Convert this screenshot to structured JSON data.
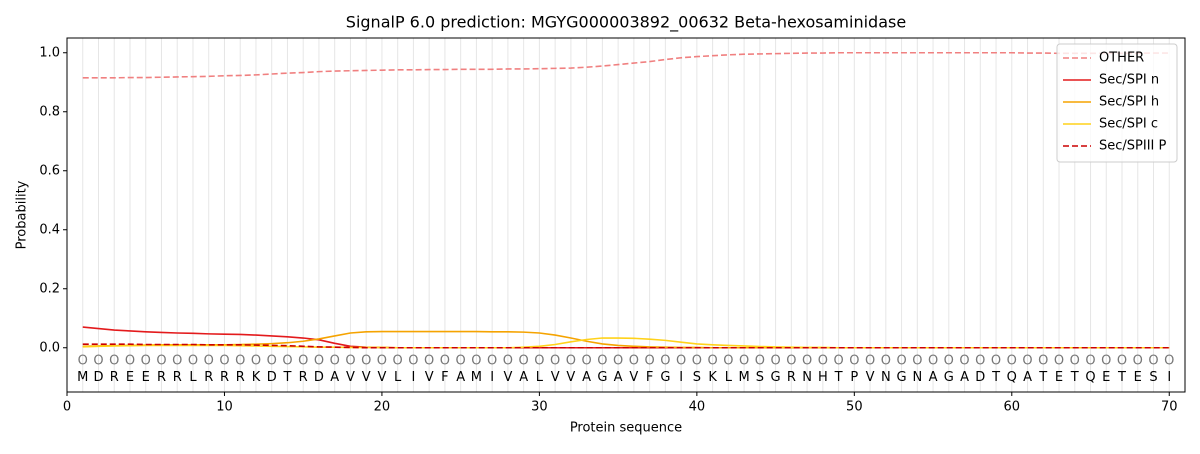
{
  "chart_data": {
    "type": "line",
    "title": "SignalP 6.0 prediction: MGYG000003892_00632 Beta-hexosaminidase",
    "xlabel": "Protein sequence",
    "ylabel": "Probability",
    "x": [
      1,
      2,
      3,
      4,
      5,
      6,
      7,
      8,
      9,
      10,
      11,
      12,
      13,
      14,
      15,
      16,
      17,
      18,
      19,
      20,
      21,
      22,
      23,
      24,
      25,
      26,
      27,
      28,
      29,
      30,
      31,
      32,
      33,
      34,
      35,
      36,
      37,
      38,
      39,
      40,
      41,
      42,
      43,
      44,
      45,
      46,
      47,
      48,
      49,
      50,
      51,
      52,
      53,
      54,
      55,
      56,
      57,
      58,
      59,
      60,
      61,
      62,
      63,
      64,
      65,
      66,
      67,
      68,
      69,
      70
    ],
    "sequence": [
      "M",
      "D",
      "R",
      "E",
      "E",
      "R",
      "R",
      "L",
      "R",
      "R",
      "R",
      "K",
      "D",
      "T",
      "R",
      "D",
      "A",
      "V",
      "V",
      "V",
      "L",
      "I",
      "V",
      "F",
      "A",
      "M",
      "I",
      "V",
      "A",
      "L",
      "V",
      "V",
      "A",
      "G",
      "A",
      "V",
      "F",
      "G",
      "I",
      "S",
      "K",
      "L",
      "M",
      "S",
      "G",
      "R",
      "N",
      "H",
      "T",
      "P",
      "V",
      "N",
      "G",
      "N",
      "A",
      "G",
      "A",
      "D",
      "T",
      "Q",
      "A",
      "T",
      "E",
      "T",
      "Q",
      "E",
      "T",
      "E",
      "S",
      "I"
    ],
    "state_labels": [
      "O",
      "O",
      "O",
      "O",
      "O",
      "O",
      "O",
      "O",
      "O",
      "O",
      "O",
      "O",
      "O",
      "O",
      "O",
      "O",
      "O",
      "O",
      "O",
      "O",
      "O",
      "O",
      "O",
      "O",
      "O",
      "O",
      "O",
      "O",
      "O",
      "O",
      "O",
      "O",
      "O",
      "O",
      "O",
      "O",
      "O",
      "O",
      "O",
      "O",
      "O",
      "O",
      "O",
      "O",
      "O",
      "O",
      "O",
      "O",
      "O",
      "O",
      "O",
      "O",
      "O",
      "O",
      "O",
      "O",
      "O",
      "O",
      "O",
      "O",
      "O",
      "O",
      "O",
      "O",
      "O",
      "O",
      "O",
      "O",
      "O",
      "O"
    ],
    "series": [
      {
        "name": "OTHER",
        "color": "#f08080",
        "dashed": true,
        "values": [
          0.915,
          0.915,
          0.915,
          0.916,
          0.916,
          0.917,
          0.918,
          0.919,
          0.92,
          0.922,
          0.923,
          0.925,
          0.928,
          0.931,
          0.933,
          0.936,
          0.938,
          0.939,
          0.94,
          0.941,
          0.942,
          0.942,
          0.943,
          0.943,
          0.944,
          0.944,
          0.944,
          0.945,
          0.945,
          0.946,
          0.947,
          0.948,
          0.951,
          0.955,
          0.96,
          0.965,
          0.97,
          0.977,
          0.983,
          0.987,
          0.99,
          0.993,
          0.995,
          0.996,
          0.997,
          0.998,
          0.999,
          0.999,
          1.0,
          1.0,
          1.0,
          1.0,
          1.0,
          1.0,
          1.0,
          1.0,
          1.0,
          1.0,
          1.0,
          1.0,
          0.999,
          0.999,
          0.998,
          0.998,
          0.998,
          0.998,
          0.998,
          0.998,
          0.999,
          0.999
        ]
      },
      {
        "name": "Sec/SPI n",
        "color": "#e31a1c",
        "dashed": false,
        "values": [
          0.07,
          0.065,
          0.06,
          0.057,
          0.054,
          0.052,
          0.05,
          0.049,
          0.047,
          0.046,
          0.045,
          0.043,
          0.04,
          0.037,
          0.033,
          0.027,
          0.015,
          0.005,
          0.002,
          0.001,
          0,
          0,
          0,
          0,
          0,
          0,
          0,
          0,
          0,
          0,
          0,
          0,
          0,
          0,
          0,
          0,
          0,
          0,
          0,
          0,
          0,
          0,
          0,
          0,
          0,
          0,
          0,
          0,
          0,
          0,
          0,
          0,
          0,
          0,
          0,
          0,
          0,
          0,
          0,
          0,
          0,
          0,
          0,
          0,
          0,
          0,
          0,
          0,
          0,
          0
        ]
      },
      {
        "name": "Sec/SPI h",
        "color": "#f5a300",
        "dashed": false,
        "values": [
          0.005,
          0.006,
          0.007,
          0.008,
          0.009,
          0.01,
          0.01,
          0.01,
          0.01,
          0.01,
          0.011,
          0.012,
          0.014,
          0.017,
          0.022,
          0.03,
          0.04,
          0.05,
          0.054,
          0.055,
          0.055,
          0.055,
          0.055,
          0.055,
          0.055,
          0.055,
          0.054,
          0.054,
          0.053,
          0.05,
          0.043,
          0.033,
          0.022,
          0.013,
          0.008,
          0.005,
          0.003,
          0.002,
          0.001,
          0.001,
          0,
          0,
          0,
          0,
          0,
          0,
          0,
          0,
          0,
          0,
          0,
          0,
          0,
          0,
          0,
          0,
          0,
          0,
          0,
          0,
          0,
          0,
          0,
          0,
          0,
          0,
          0,
          0,
          0,
          0
        ]
      },
      {
        "name": "Sec/SPI c",
        "color": "#ffd21a",
        "dashed": false,
        "values": [
          0.003,
          0.005,
          0.006,
          0.007,
          0.008,
          0.008,
          0.008,
          0.008,
          0.008,
          0.008,
          0.007,
          0.006,
          0.005,
          0.004,
          0.003,
          0.002,
          0.002,
          0.001,
          0.001,
          0.001,
          0,
          0,
          0,
          0,
          0,
          0,
          0,
          0,
          0.002,
          0.005,
          0.011,
          0.02,
          0.028,
          0.033,
          0.033,
          0.032,
          0.029,
          0.025,
          0.019,
          0.013,
          0.01,
          0.008,
          0.006,
          0.004,
          0.003,
          0.002,
          0.001,
          0.001,
          0,
          0,
          0,
          0,
          0,
          0,
          0,
          0,
          0,
          0,
          0,
          0,
          0,
          0,
          0,
          0,
          0,
          0,
          0,
          0,
          0,
          0
        ]
      },
      {
        "name": "Sec/SPIII P",
        "color": "#cc0000",
        "dashed": true,
        "values": [
          0.012,
          0.012,
          0.012,
          0.012,
          0.011,
          0.011,
          0.011,
          0.011,
          0.01,
          0.01,
          0.01,
          0.009,
          0.008,
          0.007,
          0.005,
          0.003,
          0.002,
          0.001,
          0,
          0,
          0,
          0,
          0,
          0,
          0,
          0,
          0,
          0,
          0,
          0,
          0,
          0,
          0,
          0,
          0,
          0,
          0,
          0,
          0,
          0,
          0,
          0,
          0,
          0,
          0,
          0,
          0,
          0,
          0,
          0,
          0,
          0,
          0,
          0,
          0,
          0,
          0,
          0,
          0,
          0,
          0,
          0,
          0,
          0,
          0,
          0,
          0,
          0,
          0,
          0
        ]
      }
    ],
    "xlim": [
      0,
      71
    ],
    "ylim": [
      -0.15,
      1.05
    ],
    "xticks": [
      0,
      10,
      20,
      30,
      40,
      50,
      60,
      70
    ],
    "yticks": [
      {
        "value": 0,
        "label": "0.0"
      },
      {
        "value": 0.2,
        "label": "0.2"
      },
      {
        "value": 0.4,
        "label": "0.4"
      },
      {
        "value": 0.6,
        "label": "0.6"
      },
      {
        "value": 0.8,
        "label": "0.8"
      },
      {
        "value": 1,
        "label": "1.0"
      }
    ],
    "grid": true,
    "legend": "upper right"
  }
}
